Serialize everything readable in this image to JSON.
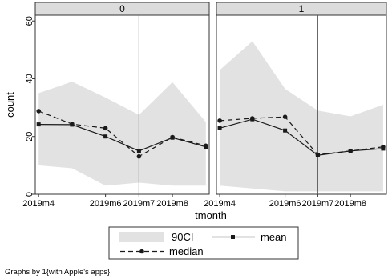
{
  "chart_data": {
    "type": "line",
    "xlabel": "tmonth",
    "ylabel": "count",
    "ylim": [
      0,
      62
    ],
    "yticks": [
      0,
      20,
      40,
      60
    ],
    "x_ticks": [
      {
        "x": 0,
        "label": "2019m4"
      },
      {
        "x": 2,
        "label": "2019m6"
      },
      {
        "x": 3,
        "label": "2019m7"
      },
      {
        "x": 4,
        "label": "2019m8"
      }
    ],
    "xlim": [
      -0.1,
      5.1
    ],
    "vline_x": 3,
    "grid": false,
    "legend_position": "bottom",
    "legend": [
      {
        "key": "ci",
        "label": "90CI"
      },
      {
        "key": "mean",
        "label": "mean"
      },
      {
        "key": "median",
        "label": "median"
      }
    ],
    "note": "Graphs by 1{with Apple's apps}",
    "colors": {
      "ci_fill": "#e2e2e2",
      "line": "#1a1a1a",
      "strip": "#dcdcdc",
      "frame": "#333333"
    },
    "panels": [
      {
        "title": "0",
        "x": [
          0,
          1,
          2,
          3,
          4,
          5
        ],
        "mean": [
          24.2,
          24.1,
          20.0,
          15.0,
          19.6,
          16.4
        ],
        "median": [
          28.8,
          24.3,
          22.9,
          13.1,
          19.8,
          16.8
        ],
        "ci_upper": [
          35.0,
          39.0,
          33.5,
          27.5,
          38.8,
          25.0
        ],
        "ci_lower": [
          10.0,
          9.0,
          3.0,
          4.0,
          3.0,
          3.0
        ]
      },
      {
        "title": "1",
        "x": [
          0,
          1,
          2,
          3,
          4,
          5
        ],
        "mean": [
          22.9,
          26.0,
          22.1,
          13.5,
          15.0,
          15.8
        ],
        "median": [
          25.5,
          26.3,
          26.8,
          13.7,
          15.0,
          16.4
        ],
        "ci_upper": [
          43.0,
          53.0,
          36.5,
          29.0,
          27.0,
          31.0
        ],
        "ci_lower": [
          3.0,
          2.0,
          1.0,
          1.0,
          1.0,
          1.0
        ]
      }
    ]
  }
}
